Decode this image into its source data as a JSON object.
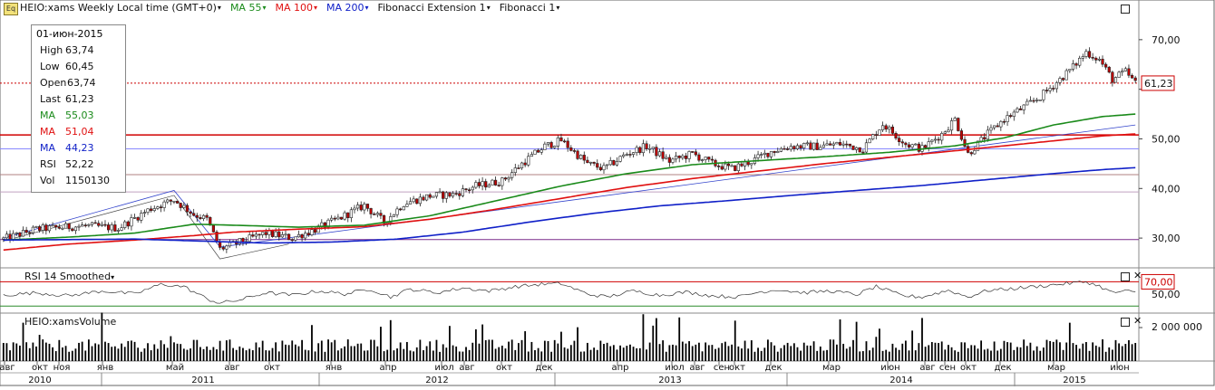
{
  "header": {
    "symbol_label": "HEIO:xams Weekly Local time (GMT+0)",
    "ma55_label": "MA 55",
    "ma100_label": "MA 100",
    "ma200_label": "MA 200",
    "fib_ext_label": "Fibonacci Extension 1",
    "fib_label": "Fibonacci 1",
    "eq_icon": "Eq"
  },
  "colors": {
    "ma55": "#1a8a1a",
    "ma100": "#e01010",
    "ma200": "#1020c8",
    "candle_up": "#ffffff",
    "candle_down": "#c00000",
    "rsi": "#333333",
    "volume": "#000000",
    "hline_red": "#d00000",
    "hline_purple": "#7a2a8a"
  },
  "info_panel": {
    "date": "01-июн-2015",
    "rows": [
      {
        "label": "High",
        "value": "63,74",
        "color": "#111111"
      },
      {
        "label": "Low",
        "value": "60,45",
        "color": "#111111"
      },
      {
        "label": "Open",
        "value": "63,74",
        "color": "#111111"
      },
      {
        "label": "Last",
        "value": "61,23",
        "color": "#111111"
      },
      {
        "label": "MA",
        "value": "55,03",
        "color": "#1a8a1a"
      },
      {
        "label": "MA",
        "value": "51,04",
        "color": "#e01010"
      },
      {
        "label": "MA",
        "value": "44,23",
        "color": "#1020c8"
      },
      {
        "label": "RSI",
        "value": "52,22",
        "color": "#111111"
      },
      {
        "label": "Vol",
        "value": "1150130",
        "color": "#111111"
      }
    ]
  },
  "price_axis": {
    "ticks": [
      "70,00",
      "60,00",
      "50,00",
      "40,00",
      "30,00"
    ],
    "last_price_label": "61,23"
  },
  "rsi_panel": {
    "title": "RSI 14 Smoothed",
    "level_label": "70,00",
    "tick_label": "50,00"
  },
  "volume_panel": {
    "title": "HEIO:xamsVolume",
    "tick_label": "2 000 000"
  },
  "time_axis": {
    "months": [
      "авг",
      "окт",
      "ноя",
      "янв",
      "май",
      "авг",
      "окт",
      "янв",
      "апр",
      "июл",
      "авг",
      "окт",
      "дек",
      "апр",
      "июл",
      "авг",
      "сен",
      "окт",
      "дек",
      "мар",
      "июн",
      "авг",
      "сен",
      "окт",
      "дек",
      "мар",
      "июн"
    ],
    "years": [
      "2010",
      "2011",
      "2012",
      "2013",
      "2014",
      "2015"
    ]
  },
  "chart_data": {
    "type": "candlestick",
    "interval": "weekly",
    "period": {
      "start": "2010-08",
      "end": "2015-06"
    },
    "ylim": [
      24,
      78
    ],
    "horizontal_levels": [
      {
        "value": 50.8,
        "color": "#d00000"
      },
      {
        "value": 48.0,
        "color": "#8888ff"
      },
      {
        "value": 42.8,
        "color": "#b08080"
      },
      {
        "value": 39.3,
        "color": "#c0a0c0"
      },
      {
        "value": 29.7,
        "color": "#7a2a8a"
      }
    ],
    "last_price": 61.23,
    "anchors": {
      "close": [
        [
          0,
          29.8
        ],
        [
          10,
          31.8
        ],
        [
          25,
          32.5
        ],
        [
          35,
          32
        ],
        [
          45,
          36
        ],
        [
          52,
          37.7
        ],
        [
          58,
          34.8
        ],
        [
          62,
          33.8
        ],
        [
          66,
          27.8
        ],
        [
          72,
          29.2
        ],
        [
          80,
          31
        ],
        [
          88,
          30
        ],
        [
          96,
          32
        ],
        [
          103,
          34.2
        ],
        [
          110,
          36.6
        ],
        [
          116,
          33.2
        ],
        [
          122,
          37
        ],
        [
          130,
          38.5
        ],
        [
          137,
          38.8
        ],
        [
          144,
          40.5
        ],
        [
          152,
          41.5
        ],
        [
          158,
          45
        ],
        [
          165,
          48.5
        ],
        [
          170,
          49.7
        ],
        [
          178,
          45
        ],
        [
          183,
          44
        ],
        [
          190,
          47
        ],
        [
          196,
          48.5
        ],
        [
          203,
          45.5
        ],
        [
          210,
          47
        ],
        [
          216,
          45
        ],
        [
          222,
          44
        ],
        [
          228,
          45.5
        ],
        [
          234,
          47.5
        ],
        [
          240,
          48.5
        ],
        [
          248,
          48.5
        ],
        [
          255,
          49
        ],
        [
          262,
          48
        ],
        [
          268,
          53
        ],
        [
          275,
          49
        ],
        [
          280,
          48
        ],
        [
          286,
          51
        ],
        [
          290,
          54
        ],
        [
          294,
          47
        ],
        [
          300,
          51
        ],
        [
          305,
          54
        ],
        [
          310,
          56
        ],
        [
          316,
          58.5
        ],
        [
          322,
          62
        ],
        [
          326,
          64.5
        ],
        [
          330,
          67.5
        ],
        [
          334,
          66
        ],
        [
          338,
          62
        ],
        [
          342,
          63.5
        ],
        [
          345,
          61.2
        ]
      ],
      "ma55": [
        [
          0,
          29.6
        ],
        [
          20,
          30.2
        ],
        [
          40,
          31
        ],
        [
          58,
          32.8
        ],
        [
          70,
          32.6
        ],
        [
          90,
          32.2
        ],
        [
          110,
          32.6
        ],
        [
          130,
          34.5
        ],
        [
          150,
          37.5
        ],
        [
          170,
          40.5
        ],
        [
          190,
          43
        ],
        [
          210,
          44.8
        ],
        [
          230,
          45.6
        ],
        [
          250,
          46.4
        ],
        [
          270,
          47.3
        ],
        [
          290,
          48.6
        ],
        [
          305,
          50.2
        ],
        [
          320,
          52.8
        ],
        [
          335,
          54.5
        ],
        [
          345,
          55.0
        ]
      ],
      "ma100": [
        [
          0,
          27.6
        ],
        [
          20,
          28.8
        ],
        [
          40,
          29.6
        ],
        [
          58,
          30.5
        ],
        [
          70,
          31.2
        ],
        [
          90,
          31.8
        ],
        [
          110,
          32.3
        ],
        [
          130,
          33.8
        ],
        [
          150,
          35.8
        ],
        [
          170,
          38
        ],
        [
          190,
          40.2
        ],
        [
          210,
          42
        ],
        [
          230,
          43.5
        ],
        [
          250,
          45
        ],
        [
          270,
          46.3
        ],
        [
          290,
          47.6
        ],
        [
          305,
          48.6
        ],
        [
          320,
          49.6
        ],
        [
          335,
          50.6
        ],
        [
          345,
          51.0
        ]
      ],
      "ma200": [
        [
          0,
          29.6
        ],
        [
          20,
          29.7
        ],
        [
          40,
          29.8
        ],
        [
          60,
          29.4
        ],
        [
          80,
          29.0
        ],
        [
          100,
          29.2
        ],
        [
          120,
          29.8
        ],
        [
          140,
          31.2
        ],
        [
          160,
          33.2
        ],
        [
          180,
          35
        ],
        [
          200,
          36.5
        ],
        [
          220,
          37.5
        ],
        [
          240,
          38.6
        ],
        [
          260,
          39.6
        ],
        [
          280,
          40.6
        ],
        [
          300,
          41.8
        ],
        [
          320,
          43
        ],
        [
          335,
          43.8
        ],
        [
          345,
          44.2
        ]
      ],
      "rsi": [
        [
          0,
          48
        ],
        [
          10,
          52
        ],
        [
          20,
          47
        ],
        [
          30,
          55
        ],
        [
          40,
          50
        ],
        [
          48,
          66
        ],
        [
          55,
          62
        ],
        [
          62,
          42
        ],
        [
          66,
          35
        ],
        [
          72,
          40
        ],
        [
          80,
          52
        ],
        [
          88,
          48
        ],
        [
          96,
          55
        ],
        [
          104,
          50
        ],
        [
          112,
          58
        ],
        [
          118,
          45
        ],
        [
          124,
          58
        ],
        [
          132,
          52
        ],
        [
          140,
          60
        ],
        [
          148,
          55
        ],
        [
          156,
          62
        ],
        [
          164,
          66
        ],
        [
          170,
          67
        ],
        [
          178,
          50
        ],
        [
          184,
          45
        ],
        [
          192,
          55
        ],
        [
          200,
          48
        ],
        [
          208,
          53
        ],
        [
          216,
          47
        ],
        [
          224,
          45
        ],
        [
          230,
          53
        ],
        [
          236,
          57
        ],
        [
          244,
          52
        ],
        [
          252,
          55
        ],
        [
          260,
          49
        ],
        [
          266,
          62
        ],
        [
          274,
          47
        ],
        [
          280,
          45
        ],
        [
          288,
          56
        ],
        [
          294,
          45
        ],
        [
          300,
          56
        ],
        [
          306,
          58
        ],
        [
          314,
          62
        ],
        [
          320,
          65
        ],
        [
          326,
          68
        ],
        [
          330,
          70
        ],
        [
          334,
          63
        ],
        [
          338,
          52
        ],
        [
          342,
          55
        ],
        [
          345,
          52
        ]
      ]
    }
  }
}
